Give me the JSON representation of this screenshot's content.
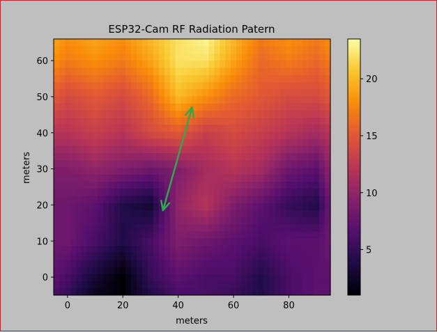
{
  "window": {
    "border_color": "#cc2222",
    "background": "#bfbfbf"
  },
  "chart_data": {
    "type": "heatmap",
    "title": "ESP32-Cam RF Radiation Patern",
    "xlabel": "meters",
    "ylabel": "meters",
    "xlim": [
      -5,
      95
    ],
    "ylim": [
      -5,
      66
    ],
    "x_ticks": [
      0,
      20,
      40,
      60,
      80
    ],
    "y_ticks": [
      0,
      10,
      20,
      30,
      40,
      50,
      60
    ],
    "colormap": "inferno",
    "colorbar": {
      "range": [
        1,
        23.5
      ],
      "ticks": [
        5,
        10,
        15,
        20
      ]
    },
    "grid": false,
    "grid_x": [
      -5,
      0,
      10,
      20,
      30,
      40,
      50,
      60,
      70,
      80,
      90,
      95
    ],
    "grid_y": [
      -5,
      0,
      10,
      20,
      30,
      40,
      50,
      60,
      66
    ],
    "values": [
      [
        6,
        5,
        2,
        1,
        4,
        6,
        6,
        5,
        4,
        6,
        7,
        7
      ],
      [
        7,
        6,
        3,
        1,
        5,
        7,
        6,
        6,
        4,
        6,
        7,
        7
      ],
      [
        8,
        8,
        6,
        4,
        6,
        9,
        8,
        7,
        6,
        7,
        7,
        8
      ],
      [
        8,
        8,
        7,
        4,
        3,
        10,
        12,
        9,
        7,
        5,
        4,
        8
      ],
      [
        9,
        9,
        10,
        9,
        8,
        9,
        11,
        12,
        11,
        8,
        7,
        10
      ],
      [
        12,
        12,
        13,
        12,
        14,
        15,
        13,
        14,
        13,
        12,
        11,
        12
      ],
      [
        15,
        14,
        15,
        14,
        16,
        20,
        18,
        16,
        15,
        14,
        14,
        15
      ],
      [
        18,
        17,
        18,
        17,
        19,
        22,
        22,
        19,
        16,
        17,
        16,
        17
      ],
      [
        19,
        18,
        19,
        18,
        20,
        22,
        23,
        20,
        17,
        18,
        17,
        18
      ]
    ],
    "annotations": [
      {
        "type": "double-arrow",
        "from": [
          34.5,
          18.5
        ],
        "to": [
          45,
          47
        ],
        "color": "#2eaa4a"
      }
    ]
  }
}
